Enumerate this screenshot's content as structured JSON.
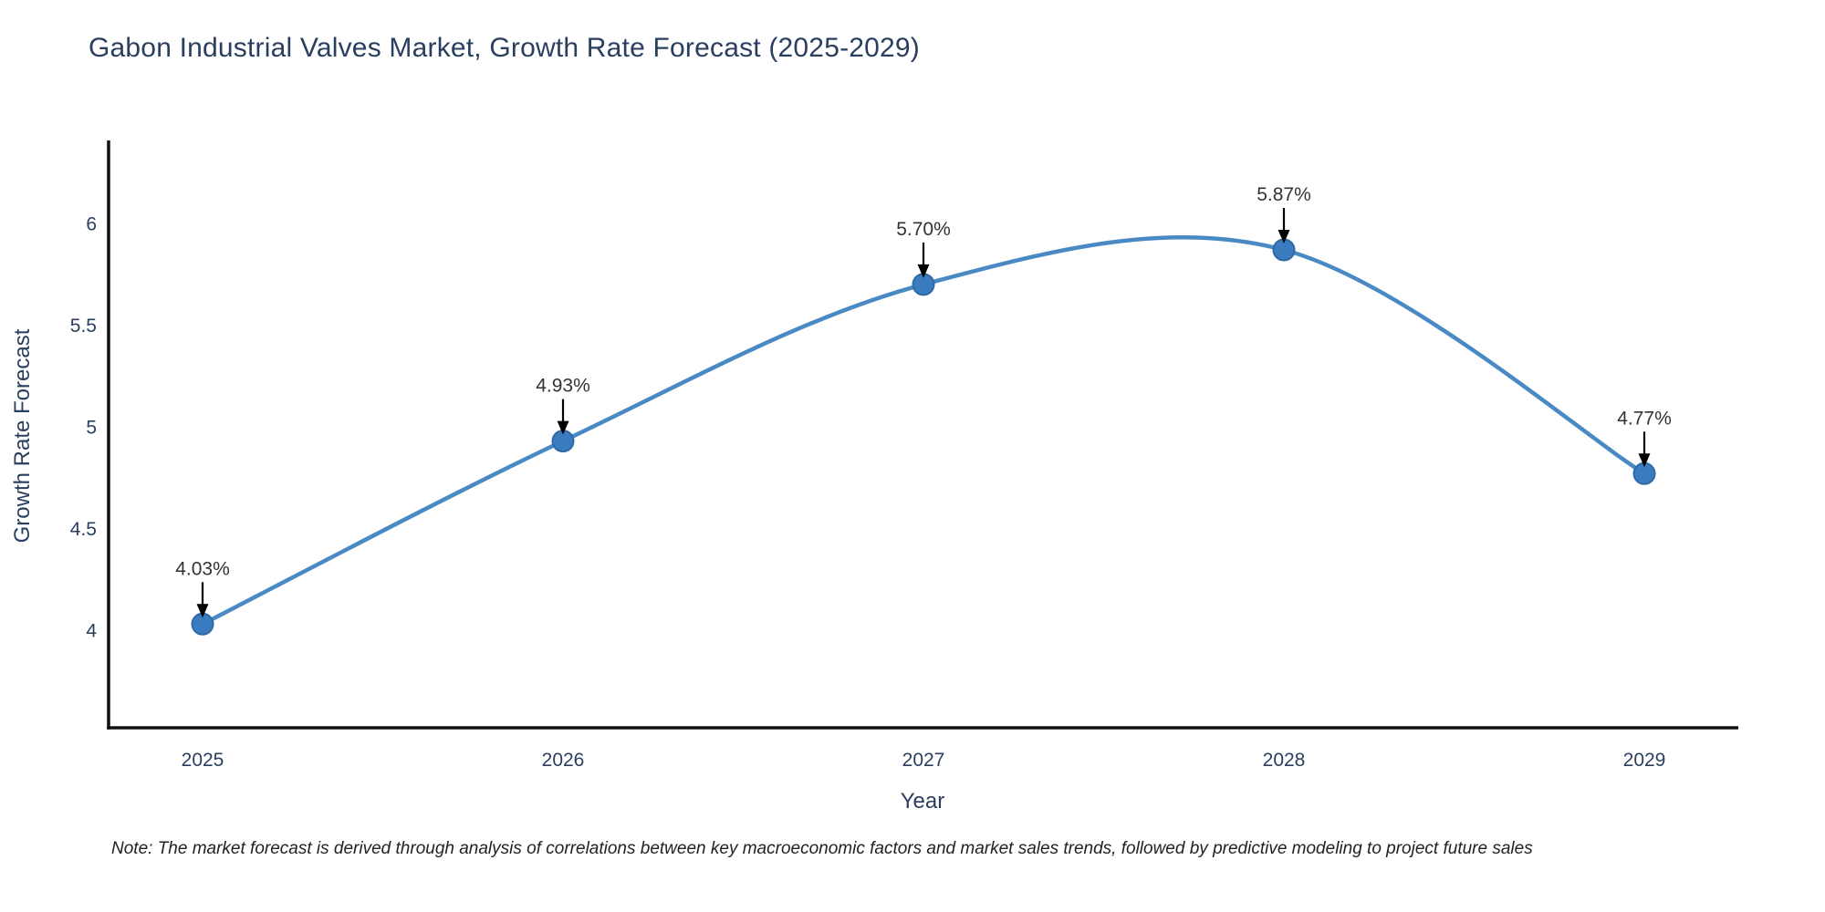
{
  "chart_data": {
    "type": "line",
    "title": "Gabon Industrial Valves Market, Growth Rate Forecast (2025-2029)",
    "xlabel": "Year",
    "ylabel": "Growth Rate Forecast",
    "x": [
      2025,
      2026,
      2027,
      2028,
      2029
    ],
    "series": [
      {
        "name": "Growth Rate Forecast",
        "values": [
          4.03,
          4.93,
          5.7,
          5.87,
          4.77
        ]
      }
    ],
    "point_labels": [
      "4.03%",
      "4.93%",
      "5.70%",
      "5.87%",
      "4.77%"
    ],
    "yticks": [
      4,
      4.5,
      5,
      5.5,
      6
    ],
    "ylim": [
      3.5,
      6.4
    ],
    "line_shape": "spline",
    "markers": true,
    "grid": false,
    "legend": "none",
    "annotation_style": "value label above point with downward black arrow",
    "colors": {
      "line": "#4a8ac4",
      "marker": "#3a7cbf",
      "marker_edge": "#2f6aa6",
      "axis": "#111111",
      "tick_label": "#2a3f5f",
      "title": "#2a3f5f",
      "annotation": "#333333",
      "arrow": "#000000",
      "background": "#ffffff"
    }
  },
  "footnote": "Note: The market forecast is derived through analysis of correlations between key macroeconomic factors and market sales trends, followed by predictive modeling to project future sales"
}
